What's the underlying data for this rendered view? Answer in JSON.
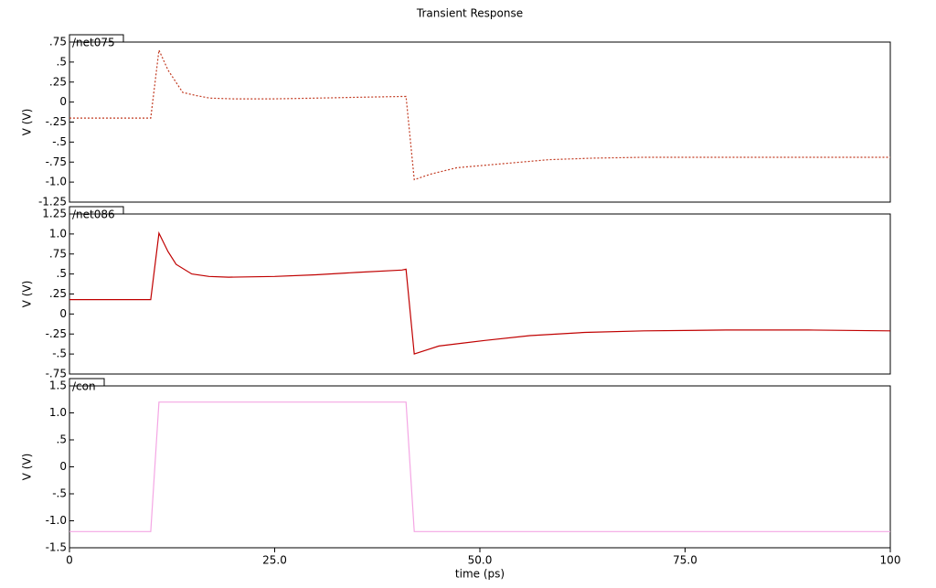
{
  "chart_data": [
    {
      "type": "line",
      "title": "Transient Response",
      "ylabel": "V (V)",
      "xlim": [
        0,
        100
      ],
      "ylim": [
        -1.25,
        0.75
      ],
      "yticks": [
        {
          "value": 0.75,
          "label": ".75"
        },
        {
          "value": 0.5,
          "label": ".5"
        },
        {
          "value": 0.25,
          "label": ".25"
        },
        0,
        {
          "value": -0.25,
          "label": "-.25"
        },
        {
          "value": -0.5,
          "label": "-.5"
        },
        {
          "value": -0.75,
          "label": "-.75"
        },
        {
          "value": -1,
          "label": "-1.0"
        },
        -1.25
      ],
      "line_style": "dotted",
      "series": [
        {
          "name": "/net075",
          "color": "#c23b22",
          "x": [
            0,
            9.9,
            10.9,
            12,
            13.8,
            15.5,
            17.1,
            20,
            25,
            30,
            35,
            40.5,
            41,
            42,
            44,
            47.2,
            52.8,
            58.4,
            64,
            70,
            80,
            90,
            100
          ],
          "values": [
            -0.2,
            -0.2,
            0.65,
            0.4,
            0.12,
            0.08,
            0.05,
            0.04,
            0.04,
            0.05,
            0.06,
            0.07,
            0.07,
            -0.97,
            -0.9,
            -0.82,
            -0.77,
            -0.72,
            -0.7,
            -0.69,
            -0.69,
            -0.69,
            -0.69
          ]
        }
      ]
    },
    {
      "type": "line",
      "ylabel": "V (V)",
      "xlim": [
        0,
        100
      ],
      "ylim": [
        -0.75,
        1.25
      ],
      "yticks": [
        1.25,
        {
          "value": 1,
          "label": "1.0"
        },
        {
          "value": 0.75,
          "label": ".75"
        },
        {
          "value": 0.5,
          "label": ".5"
        },
        {
          "value": 0.25,
          "label": ".25"
        },
        0,
        {
          "value": -0.25,
          "label": "-.25"
        },
        {
          "value": -0.5,
          "label": "-.5"
        },
        {
          "value": -0.75,
          "label": "-.75"
        }
      ],
      "line_style": "solid",
      "series": [
        {
          "name": "/net086",
          "color": "#c00000",
          "x": [
            0,
            9.9,
            10.9,
            12,
            13,
            14.9,
            17,
            19.4,
            25,
            30,
            35,
            40.5,
            41,
            42,
            45,
            50.6,
            56.1,
            62.8,
            70,
            80,
            90,
            100
          ],
          "values": [
            0.18,
            0.18,
            1.01,
            0.78,
            0.62,
            0.5,
            0.47,
            0.46,
            0.47,
            0.49,
            0.52,
            0.55,
            0.56,
            -0.5,
            -0.4,
            -0.33,
            -0.27,
            -0.23,
            -0.21,
            -0.2,
            -0.2,
            -0.21
          ]
        }
      ]
    },
    {
      "type": "line",
      "ylabel": "V (V)",
      "xlabel": "time (ps)",
      "xlim": [
        0,
        100
      ],
      "ylim": [
        -1.5,
        1.5
      ],
      "xticks": [
        0,
        {
          "value": 25,
          "label": "25.0"
        },
        {
          "value": 50,
          "label": "50.0"
        },
        {
          "value": 75,
          "label": "75.0"
        },
        100
      ],
      "yticks": [
        1.5,
        {
          "value": 1,
          "label": "1.0"
        },
        {
          "value": 0.5,
          "label": ".5"
        },
        0,
        {
          "value": -0.5,
          "label": "-.5"
        },
        {
          "value": -1,
          "label": "-1.0"
        },
        -1.5
      ],
      "line_style": "solid",
      "series": [
        {
          "name": "/con",
          "color": "#f4a6e4",
          "x": [
            0,
            9.9,
            10.9,
            41,
            42,
            100
          ],
          "values": [
            -1.2,
            -1.2,
            1.2,
            1.2,
            -1.2,
            -1.2
          ]
        }
      ]
    }
  ]
}
